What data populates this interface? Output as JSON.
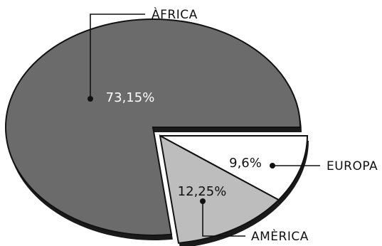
{
  "chart_data": {
    "type": "pie",
    "title": "",
    "slices": [
      {
        "label": "ÀFRICA",
        "value": 73.15,
        "display": "73,15%",
        "color": "#6b6b6b"
      },
      {
        "label": "EUROPA",
        "value": 9.6,
        "display": "9,6%",
        "color": "#ffffff"
      },
      {
        "label": "AMÈRICA",
        "value": 12.25,
        "display": "12,25%",
        "color": "#bdbdbd"
      }
    ],
    "legend": "none",
    "style": "3d-tilted-exploded"
  }
}
